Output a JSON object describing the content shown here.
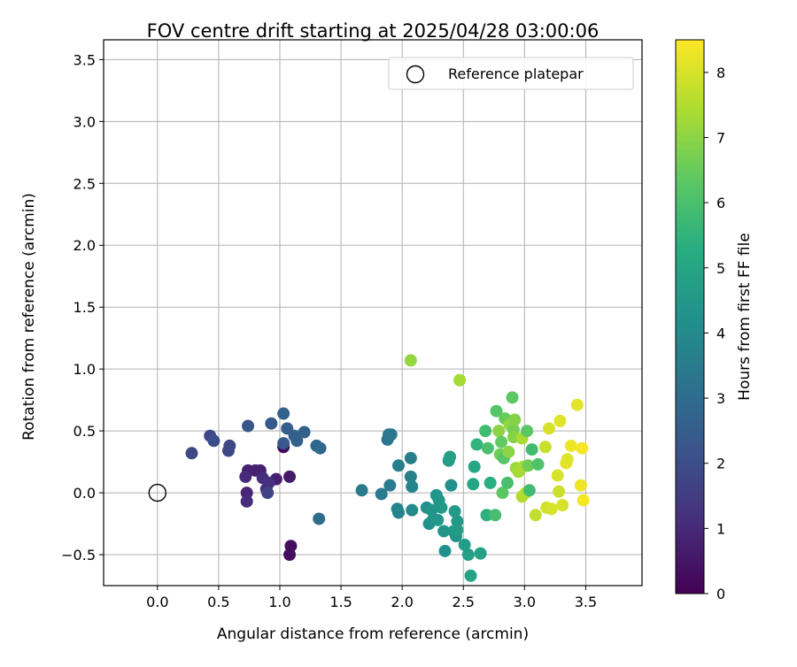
{
  "chart_data": {
    "type": "scatter",
    "title": "FOV centre drift starting at 2025/04/28 03:00:06",
    "xlabel": "Angular distance from reference (arcmin)",
    "ylabel": "Rotation from reference (arcmin)",
    "xlim": [
      -0.44,
      3.96
    ],
    "ylim": [
      -0.75,
      3.66
    ],
    "xticks": [
      "0.0",
      "0.5",
      "1.0",
      "1.5",
      "2.0",
      "2.5",
      "3.0",
      "3.5"
    ],
    "yticks": [
      "−0.5",
      "0.0",
      "0.5",
      "1.0",
      "1.5",
      "2.0",
      "2.5",
      "3.0",
      "3.5"
    ],
    "grid": true,
    "legend": {
      "placement": "top-right",
      "entries": [
        "Reference platepar"
      ]
    },
    "reference_point": {
      "name": "Reference platepar",
      "x": 0.0,
      "y": 0.0,
      "marker": "open-circle"
    },
    "colorbar": {
      "label": "Hours from first FF file",
      "colormap": "viridis",
      "range": [
        0,
        8.5
      ],
      "ticks": [
        "0",
        "1",
        "2",
        "3",
        "4",
        "5",
        "6",
        "7",
        "8"
      ]
    },
    "series": [
      {
        "points": [
          {
            "x": 1.08,
            "y": -0.5,
            "t": 0.3
          },
          {
            "x": 1.09,
            "y": -0.43,
            "t": 0.3
          },
          {
            "x": 1.03,
            "y": 0.37,
            "t": 0.2
          },
          {
            "x": 1.08,
            "y": 0.13,
            "t": 0.6
          },
          {
            "x": 0.97,
            "y": 0.11,
            "t": 0.7
          },
          {
            "x": 0.84,
            "y": 0.18,
            "t": 0.8
          },
          {
            "x": 0.8,
            "y": 0.18,
            "t": 0.8
          },
          {
            "x": 0.74,
            "y": 0.18,
            "t": 0.8
          },
          {
            "x": 0.72,
            "y": 0.13,
            "t": 1.0
          },
          {
            "x": 0.73,
            "y": 0.0,
            "t": 0.9
          },
          {
            "x": 0.73,
            "y": -0.07,
            "t": 1.1
          },
          {
            "x": 0.86,
            "y": 0.12,
            "t": 1.1
          },
          {
            "x": 0.89,
            "y": 0.03,
            "t": 1.1
          },
          {
            "x": 0.91,
            "y": 0.08,
            "t": 1.2
          },
          {
            "x": 0.9,
            "y": 0.0,
            "t": 1.7
          },
          {
            "x": 0.58,
            "y": 0.34,
            "t": 1.8
          },
          {
            "x": 0.59,
            "y": 0.38,
            "t": 1.8
          },
          {
            "x": 0.28,
            "y": 0.32,
            "t": 1.8
          },
          {
            "x": 0.43,
            "y": 0.46,
            "t": 1.8
          },
          {
            "x": 0.46,
            "y": 0.42,
            "t": 2.0
          },
          {
            "x": 0.74,
            "y": 0.54,
            "t": 2.3
          },
          {
            "x": 0.93,
            "y": 0.56,
            "t": 2.4
          },
          {
            "x": 1.03,
            "y": 0.4,
            "t": 2.4
          },
          {
            "x": 1.06,
            "y": 0.52,
            "t": 2.5
          },
          {
            "x": 1.03,
            "y": 0.64,
            "t": 2.6
          },
          {
            "x": 1.12,
            "y": 0.46,
            "t": 2.6
          },
          {
            "x": 1.14,
            "y": 0.42,
            "t": 2.6
          },
          {
            "x": 1.2,
            "y": 0.49,
            "t": 2.7
          },
          {
            "x": 1.3,
            "y": 0.38,
            "t": 2.8
          },
          {
            "x": 1.33,
            "y": 0.36,
            "t": 2.9
          },
          {
            "x": 1.32,
            "y": -0.21,
            "t": 3.0
          },
          {
            "x": 1.67,
            "y": 0.02,
            "t": 3.5
          },
          {
            "x": 1.83,
            "y": -0.01,
            "t": 3.5
          },
          {
            "x": 1.88,
            "y": 0.43,
            "t": 3.3
          },
          {
            "x": 1.89,
            "y": 0.47,
            "t": 3.3
          },
          {
            "x": 1.91,
            "y": 0.47,
            "t": 3.4
          },
          {
            "x": 1.9,
            "y": 0.06,
            "t": 3.5
          },
          {
            "x": 1.96,
            "y": -0.13,
            "t": 3.7
          },
          {
            "x": 1.97,
            "y": -0.16,
            "t": 3.8
          },
          {
            "x": 1.97,
            "y": 0.22,
            "t": 3.7
          },
          {
            "x": 2.07,
            "y": 0.28,
            "t": 3.6
          },
          {
            "x": 2.07,
            "y": 0.13,
            "t": 3.7
          },
          {
            "x": 2.08,
            "y": 0.05,
            "t": 3.8
          },
          {
            "x": 2.08,
            "y": -0.14,
            "t": 4.0
          },
          {
            "x": 2.2,
            "y": -0.12,
            "t": 4.2
          },
          {
            "x": 2.22,
            "y": -0.25,
            "t": 4.3
          },
          {
            "x": 2.24,
            "y": -0.14,
            "t": 4.4
          },
          {
            "x": 2.25,
            "y": -0.22,
            "t": 4.4
          },
          {
            "x": 2.28,
            "y": -0.02,
            "t": 4.4
          },
          {
            "x": 2.29,
            "y": -0.22,
            "t": 4.5
          },
          {
            "x": 2.3,
            "y": -0.06,
            "t": 4.5
          },
          {
            "x": 2.32,
            "y": -0.12,
            "t": 4.5
          },
          {
            "x": 2.34,
            "y": -0.31,
            "t": 4.4
          },
          {
            "x": 2.35,
            "y": -0.47,
            "t": 4.3
          },
          {
            "x": 2.38,
            "y": 0.26,
            "t": 4.7
          },
          {
            "x": 2.39,
            "y": 0.29,
            "t": 4.8
          },
          {
            "x": 2.4,
            "y": 0.06,
            "t": 4.2
          },
          {
            "x": 2.43,
            "y": -0.15,
            "t": 4.6
          },
          {
            "x": 2.44,
            "y": -0.35,
            "t": 4.4
          },
          {
            "x": 2.45,
            "y": -0.23,
            "t": 4.5
          },
          {
            "x": 2.42,
            "y": -0.31,
            "t": 4.5
          },
          {
            "x": 2.45,
            "y": -0.3,
            "t": 4.6
          },
          {
            "x": 2.51,
            "y": -0.42,
            "t": 4.7
          },
          {
            "x": 2.54,
            "y": -0.5,
            "t": 4.8
          },
          {
            "x": 2.56,
            "y": -0.67,
            "t": 4.9
          },
          {
            "x": 2.64,
            "y": -0.49,
            "t": 4.8
          },
          {
            "x": 2.58,
            "y": 0.07,
            "t": 5.0
          },
          {
            "x": 2.59,
            "y": 0.21,
            "t": 5.0
          },
          {
            "x": 2.61,
            "y": 0.39,
            "t": 5.5
          },
          {
            "x": 2.68,
            "y": 0.5,
            "t": 5.8
          },
          {
            "x": 2.69,
            "y": -0.18,
            "t": 5.4
          },
          {
            "x": 2.72,
            "y": 0.08,
            "t": 5.3
          },
          {
            "x": 2.7,
            "y": 0.36,
            "t": 6.0
          },
          {
            "x": 2.76,
            "y": -0.18,
            "t": 5.9
          },
          {
            "x": 2.77,
            "y": 0.66,
            "t": 6.2
          },
          {
            "x": 2.79,
            "y": 0.5,
            "t": 7.0
          },
          {
            "x": 2.8,
            "y": 0.31,
            "t": 6.6
          },
          {
            "x": 2.81,
            "y": 0.41,
            "t": 6.4
          },
          {
            "x": 2.82,
            "y": 0.0,
            "t": 6.3
          },
          {
            "x": 2.83,
            "y": 0.28,
            "t": 6.2
          },
          {
            "x": 2.84,
            "y": 0.6,
            "t": 6.5
          },
          {
            "x": 2.86,
            "y": 0.08,
            "t": 6.0
          },
          {
            "x": 2.87,
            "y": 0.33,
            "t": 7.0
          },
          {
            "x": 2.88,
            "y": 0.55,
            "t": 7.1
          },
          {
            "x": 2.9,
            "y": 0.77,
            "t": 6.3
          },
          {
            "x": 2.91,
            "y": 0.51,
            "t": 6.7
          },
          {
            "x": 2.91,
            "y": 0.45,
            "t": 6.9
          },
          {
            "x": 2.92,
            "y": 0.59,
            "t": 6.9
          },
          {
            "x": 2.93,
            "y": 0.2,
            "t": 7.2
          },
          {
            "x": 2.95,
            "y": 0.17,
            "t": 7.3
          },
          {
            "x": 2.98,
            "y": 0.44,
            "t": 7.4
          },
          {
            "x": 2.98,
            "y": -0.03,
            "t": 7.5
          },
          {
            "x": 2.99,
            "y": 0.21,
            "t": 7.4
          },
          {
            "x": 3.01,
            "y": 0.0,
            "t": 7.5
          },
          {
            "x": 3.02,
            "y": 0.5,
            "t": 6.3
          },
          {
            "x": 3.03,
            "y": 0.22,
            "t": 6.6
          },
          {
            "x": 3.04,
            "y": 0.02,
            "t": 5.8
          },
          {
            "x": 3.06,
            "y": 0.35,
            "t": 5.8
          },
          {
            "x": 3.09,
            "y": -0.18,
            "t": 7.7
          },
          {
            "x": 3.11,
            "y": 0.23,
            "t": 6.1
          },
          {
            "x": 3.17,
            "y": 0.37,
            "t": 7.8
          },
          {
            "x": 3.18,
            "y": -0.12,
            "t": 7.9
          },
          {
            "x": 3.2,
            "y": 0.52,
            "t": 8.0
          },
          {
            "x": 3.22,
            "y": -0.13,
            "t": 8.0
          },
          {
            "x": 3.27,
            "y": 0.14,
            "t": 8.0
          },
          {
            "x": 3.28,
            "y": 0.01,
            "t": 7.8
          },
          {
            "x": 3.29,
            "y": 0.58,
            "t": 8.1
          },
          {
            "x": 3.31,
            "y": -0.1,
            "t": 8.0
          },
          {
            "x": 3.34,
            "y": 0.24,
            "t": 8.2
          },
          {
            "x": 3.35,
            "y": 0.27,
            "t": 8.1
          },
          {
            "x": 3.38,
            "y": 0.38,
            "t": 8.3
          },
          {
            "x": 3.43,
            "y": 0.71,
            "t": 8.2
          },
          {
            "x": 3.46,
            "y": 0.06,
            "t": 8.3
          },
          {
            "x": 3.47,
            "y": 0.36,
            "t": 8.4
          },
          {
            "x": 3.48,
            "y": -0.06,
            "t": 8.4
          },
          {
            "x": 2.07,
            "y": 1.07,
            "t": 7.1
          },
          {
            "x": 2.47,
            "y": 0.91,
            "t": 7.3
          }
        ]
      }
    ]
  }
}
